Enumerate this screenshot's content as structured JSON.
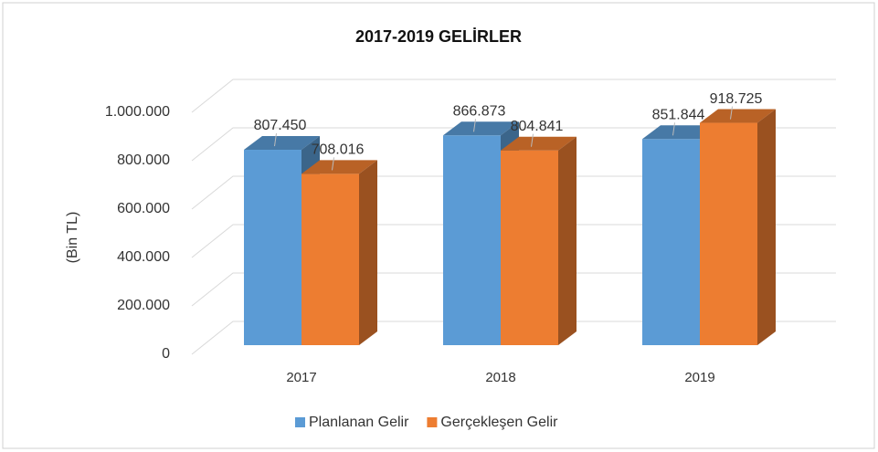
{
  "chart_data": {
    "type": "bar3d",
    "title": "2017-2019 GELİRLER",
    "y_label": "(Bin TL)",
    "categories": [
      "2017",
      "2018",
      "2019"
    ],
    "series": [
      {
        "name": "Planlanan Gelir",
        "color": "#5b9bd5",
        "values": [
          807450,
          866873,
          851844
        ],
        "value_labels": [
          "807.450",
          "866.873",
          "851.844"
        ]
      },
      {
        "name": "Gerçekleşen Gelir",
        "color": "#ed7d31",
        "values": [
          708016,
          804841,
          918725
        ],
        "value_labels": [
          "708.016",
          "804.841",
          "918.725"
        ]
      }
    ],
    "ylim": [
      0,
      1000000
    ],
    "yticks": [
      0,
      {
        "value": 200000,
        "label": "200.000"
      },
      {
        "value": 400000,
        "label": "400.000"
      },
      {
        "value": 600000,
        "label": "600.000"
      },
      {
        "value": 800000,
        "label": "800.000"
      },
      {
        "value": 1000000,
        "label": "1.000.000"
      }
    ],
    "grid": true,
    "legend": "bottom"
  }
}
